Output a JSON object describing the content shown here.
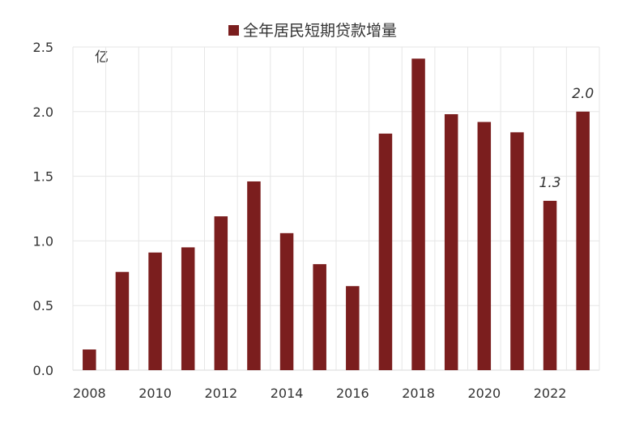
{
  "chart_data": {
    "type": "bar",
    "legend": [
      "全年居民短期贷款增量"
    ],
    "legend_position": "top-center",
    "unit_label": "亿",
    "x": [
      2008,
      2009,
      2010,
      2011,
      2012,
      2013,
      2014,
      2015,
      2016,
      2017,
      2018,
      2019,
      2020,
      2021,
      2022,
      2023
    ],
    "x_tick_labels": [
      "2008",
      "2010",
      "2012",
      "2014",
      "2016",
      "2018",
      "2020",
      "2022"
    ],
    "series": [
      {
        "name": "全年居民短期贷款增量",
        "color": "#7b1e1e",
        "values": [
          0.16,
          0.76,
          0.91,
          0.95,
          1.19,
          1.46,
          1.06,
          0.82,
          0.65,
          1.83,
          2.41,
          1.98,
          1.92,
          1.84,
          1.31,
          2.0
        ]
      }
    ],
    "y_tick_labels": [
      "0.0",
      "0.5",
      "1.0",
      "1.5",
      "2.0",
      "2.5"
    ],
    "ylim": [
      0,
      2.5
    ],
    "grid": true,
    "data_labels": [
      {
        "x": 2022,
        "text": "1.3"
      },
      {
        "x": 2023,
        "text": "2.0"
      }
    ]
  }
}
